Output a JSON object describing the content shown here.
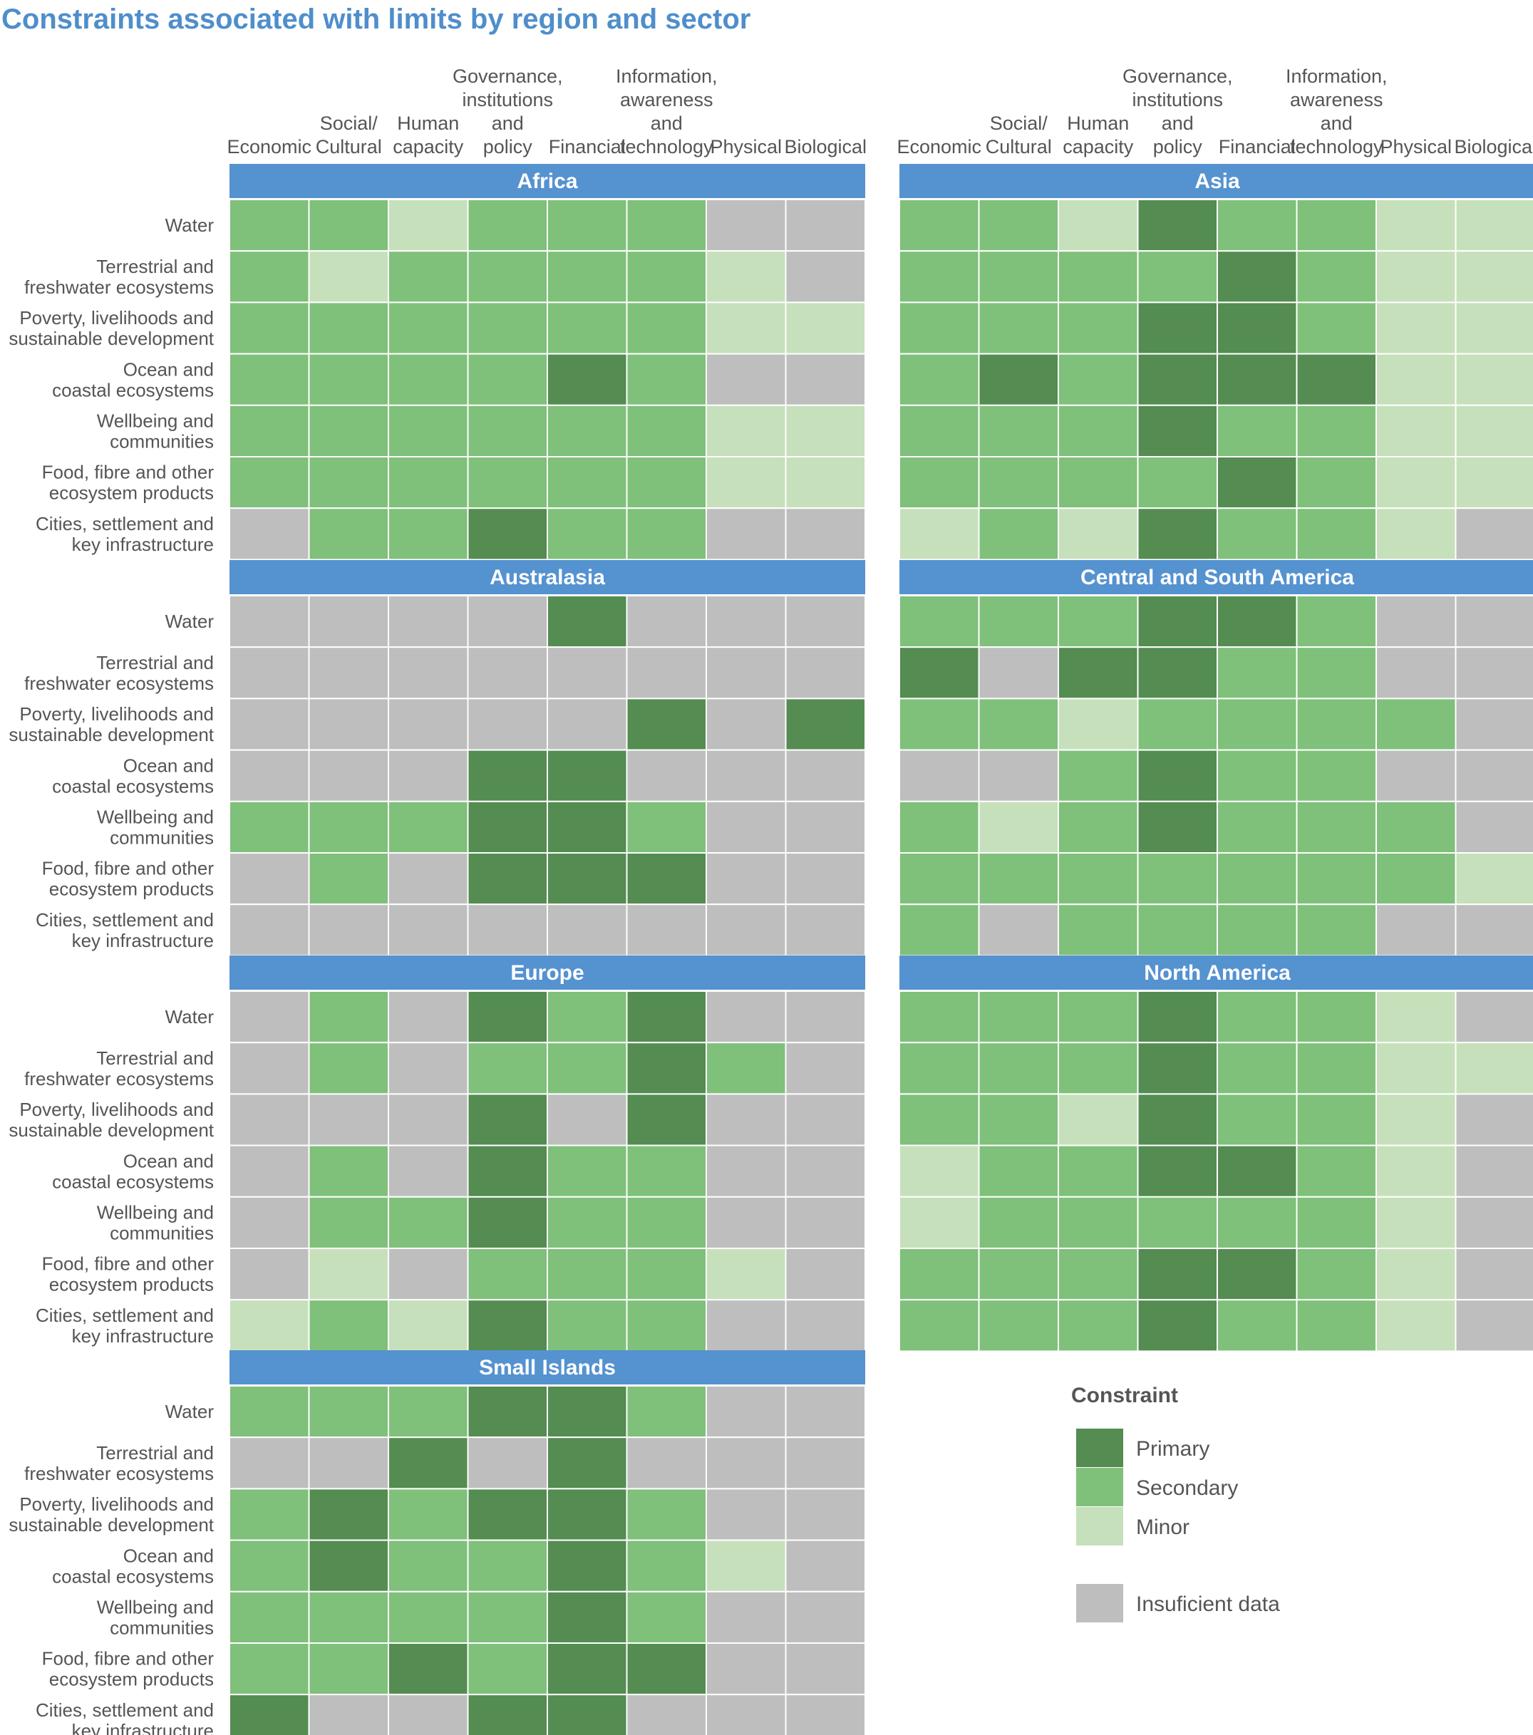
{
  "title": "Constraints associated with limits by region and sector",
  "colors": {
    "title": "#4f8ecb",
    "header_bar": "#5592d0",
    "header_text": "#ffffff",
    "label_text": "#555555",
    "Primary": "#548c52",
    "Secondary": "#7fc07a",
    "Minor": "#c6e0bb",
    "Insufficient data": "#bebebe"
  },
  "column_headers": [
    [
      "Economic"
    ],
    [
      "Social/",
      "Cultural"
    ],
    [
      "Human",
      "capacity"
    ],
    [
      "Governance,",
      "institutions",
      "and",
      "policy"
    ],
    [
      "Financial"
    ],
    [
      "Information,",
      "awareness",
      "and",
      "technology"
    ],
    [
      "Physical"
    ],
    [
      "Biological"
    ]
  ],
  "row_labels": [
    [
      "Water"
    ],
    [
      "Terrestrial and",
      "freshwater ecosystems"
    ],
    [
      "Poverty, livelihoods and",
      "sustainable development"
    ],
    [
      "Ocean and",
      "coastal ecosystems"
    ],
    [
      "Wellbeing and",
      "communities"
    ],
    [
      "Food, fibre and other",
      "ecosystem products"
    ],
    [
      "Cities, settlement and",
      "key infrastructure"
    ]
  ],
  "legend": {
    "title": "Constraint",
    "items": [
      "Primary",
      "Secondary",
      "Minor",
      "Insufficient data"
    ],
    "labels": [
      "Primary",
      "Secondary",
      "Minor",
      "Insuficient data"
    ]
  },
  "chart_data": {
    "type": "heatmap",
    "title": "Constraints associated with limits by region and sector",
    "x_categories": [
      "Economic",
      "Social/Cultural",
      "Human capacity",
      "Governance, institutions and policy",
      "Financial",
      "Information, awareness and technology",
      "Physical",
      "Biological"
    ],
    "y_categories": [
      "Water",
      "Terrestrial and freshwater ecosystems",
      "Poverty, livelihoods and sustainable development",
      "Ocean and coastal ecosystems",
      "Wellbeing and communities",
      "Food, fibre and other ecosystem products",
      "Cities, settlement and key infrastructure"
    ],
    "value_legend": {
      "P": "Primary",
      "S": "Secondary",
      "M": "Minor",
      "I": "Insufficient data"
    },
    "panels": [
      {
        "name": "Africa",
        "rows": [
          [
            "S",
            "S",
            "M",
            "S",
            "S",
            "S",
            "I",
            "I"
          ],
          [
            "S",
            "M",
            "S",
            "S",
            "S",
            "S",
            "M",
            "I"
          ],
          [
            "S",
            "S",
            "S",
            "S",
            "S",
            "S",
            "M",
            "M"
          ],
          [
            "S",
            "S",
            "S",
            "S",
            "P",
            "S",
            "I",
            "I"
          ],
          [
            "S",
            "S",
            "S",
            "S",
            "S",
            "S",
            "M",
            "M"
          ],
          [
            "S",
            "S",
            "S",
            "S",
            "S",
            "S",
            "M",
            "M"
          ],
          [
            "I",
            "S",
            "S",
            "P",
            "S",
            "S",
            "I",
            "I"
          ]
        ]
      },
      {
        "name": "Asia",
        "rows": [
          [
            "S",
            "S",
            "M",
            "P",
            "S",
            "S",
            "M",
            "M"
          ],
          [
            "S",
            "S",
            "S",
            "S",
            "P",
            "S",
            "M",
            "M"
          ],
          [
            "S",
            "S",
            "S",
            "P",
            "P",
            "S",
            "M",
            "M"
          ],
          [
            "S",
            "P",
            "S",
            "P",
            "P",
            "P",
            "M",
            "M"
          ],
          [
            "S",
            "S",
            "S",
            "P",
            "S",
            "S",
            "M",
            "M"
          ],
          [
            "S",
            "S",
            "S",
            "S",
            "P",
            "S",
            "M",
            "M"
          ],
          [
            "M",
            "S",
            "M",
            "P",
            "S",
            "S",
            "M",
            "I"
          ]
        ]
      },
      {
        "name": "Australasia",
        "rows": [
          [
            "I",
            "I",
            "I",
            "I",
            "P",
            "I",
            "I",
            "I"
          ],
          [
            "I",
            "I",
            "I",
            "I",
            "I",
            "I",
            "I",
            "I"
          ],
          [
            "I",
            "I",
            "I",
            "I",
            "I",
            "P",
            "I",
            "P"
          ],
          [
            "I",
            "I",
            "I",
            "P",
            "P",
            "I",
            "I",
            "I"
          ],
          [
            "S",
            "S",
            "S",
            "P",
            "P",
            "S",
            "I",
            "I"
          ],
          [
            "I",
            "S",
            "I",
            "P",
            "P",
            "P",
            "I",
            "I"
          ],
          [
            "I",
            "I",
            "I",
            "I",
            "I",
            "I",
            "I",
            "I"
          ]
        ]
      },
      {
        "name": "Central and South America",
        "rows": [
          [
            "S",
            "S",
            "S",
            "P",
            "P",
            "S",
            "I",
            "I"
          ],
          [
            "P",
            "I",
            "P",
            "P",
            "S",
            "S",
            "I",
            "I"
          ],
          [
            "S",
            "S",
            "M",
            "S",
            "S",
            "S",
            "S",
            "I"
          ],
          [
            "I",
            "I",
            "S",
            "P",
            "S",
            "S",
            "I",
            "I"
          ],
          [
            "S",
            "M",
            "S",
            "P",
            "S",
            "S",
            "S",
            "I"
          ],
          [
            "S",
            "S",
            "S",
            "S",
            "S",
            "S",
            "S",
            "M"
          ],
          [
            "S",
            "I",
            "S",
            "S",
            "S",
            "S",
            "I",
            "I"
          ]
        ]
      },
      {
        "name": "Europe",
        "rows": [
          [
            "I",
            "S",
            "I",
            "P",
            "S",
            "P",
            "I",
            "I"
          ],
          [
            "I",
            "S",
            "I",
            "S",
            "S",
            "P",
            "S",
            "I"
          ],
          [
            "I",
            "I",
            "I",
            "P",
            "I",
            "P",
            "I",
            "I"
          ],
          [
            "I",
            "S",
            "I",
            "P",
            "S",
            "S",
            "I",
            "I"
          ],
          [
            "I",
            "S",
            "S",
            "P",
            "S",
            "S",
            "I",
            "I"
          ],
          [
            "I",
            "M",
            "I",
            "S",
            "S",
            "S",
            "M",
            "I"
          ],
          [
            "M",
            "S",
            "M",
            "P",
            "S",
            "S",
            "I",
            "I"
          ]
        ]
      },
      {
        "name": "North America",
        "rows": [
          [
            "S",
            "S",
            "S",
            "P",
            "S",
            "S",
            "M",
            "I"
          ],
          [
            "S",
            "S",
            "S",
            "P",
            "S",
            "S",
            "M",
            "M"
          ],
          [
            "S",
            "S",
            "M",
            "P",
            "S",
            "S",
            "M",
            "I"
          ],
          [
            "M",
            "S",
            "S",
            "P",
            "P",
            "S",
            "M",
            "I"
          ],
          [
            "M",
            "S",
            "S",
            "S",
            "S",
            "S",
            "M",
            "I"
          ],
          [
            "S",
            "S",
            "S",
            "P",
            "P",
            "S",
            "M",
            "I"
          ],
          [
            "S",
            "S",
            "S",
            "P",
            "S",
            "S",
            "M",
            "I"
          ]
        ]
      },
      {
        "name": "Small Islands",
        "rows": [
          [
            "S",
            "S",
            "S",
            "P",
            "P",
            "S",
            "I",
            "I"
          ],
          [
            "I",
            "I",
            "P",
            "I",
            "P",
            "I",
            "I",
            "I"
          ],
          [
            "S",
            "P",
            "S",
            "P",
            "P",
            "S",
            "I",
            "I"
          ],
          [
            "S",
            "P",
            "S",
            "S",
            "P",
            "S",
            "M",
            "I"
          ],
          [
            "S",
            "S",
            "S",
            "S",
            "P",
            "S",
            "I",
            "I"
          ],
          [
            "S",
            "S",
            "P",
            "S",
            "P",
            "P",
            "I",
            "I"
          ],
          [
            "P",
            "I",
            "I",
            "P",
            "P",
            "I",
            "I",
            "I"
          ]
        ]
      }
    ]
  }
}
